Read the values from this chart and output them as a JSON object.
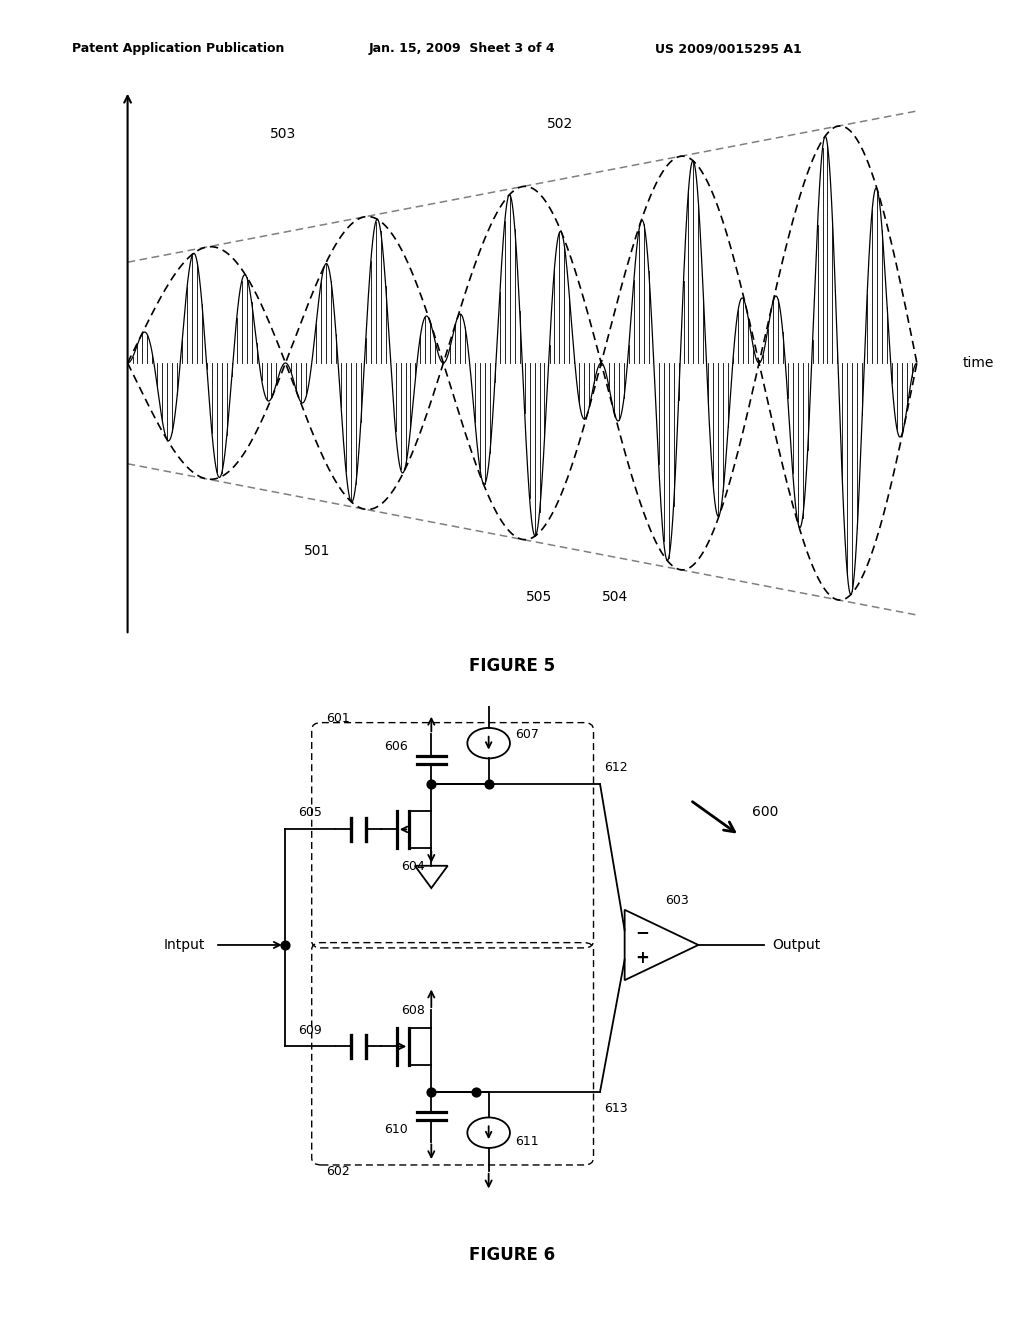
{
  "header_left": "Patent Application Publication",
  "header_mid": "Jan. 15, 2009  Sheet 3 of 4",
  "header_right": "US 2009/0015295 A1",
  "fig5_title": "FIGURE 5",
  "fig6_title": "FIGURE 6",
  "bg_color": "#ffffff",
  "lc": "#000000",
  "l503": "503",
  "l502": "502",
  "l501": "501",
  "l505": "505",
  "l504": "504",
  "l_time": "time",
  "l601": "601",
  "l602": "602",
  "l600": "600",
  "l603": "603",
  "l604": "604",
  "l605": "605",
  "l606": "606",
  "l607": "607",
  "l608": "608",
  "l609": "609",
  "l610": "610",
  "l611": "611",
  "l612": "612",
  "l613": "613",
  "l_input": "Intput",
  "l_output": "Output"
}
